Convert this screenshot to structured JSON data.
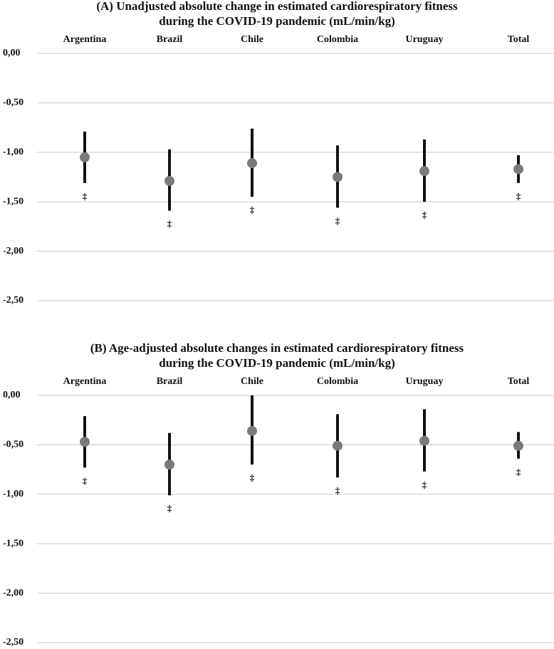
{
  "chart_data": [
    {
      "type": "errorbar",
      "title": [
        "(A) Unadjusted absolute change in estimated cardiorespiratory fitness",
        "during the COVID-19 pandemic (mL/min/kg)"
      ],
      "categories": [
        "Argentina",
        "Brazil",
        "Chile",
        "Colombia",
        "Uruguay",
        "Total"
      ],
      "values": [
        -1.05,
        -1.29,
        -1.11,
        -1.25,
        -1.19,
        -1.17
      ],
      "upper": [
        -0.79,
        -0.97,
        -0.76,
        -0.93,
        -0.87,
        -1.03
      ],
      "lower": [
        -1.31,
        -1.59,
        -1.45,
        -1.56,
        -1.5,
        -1.31
      ],
      "markers": [
        "‡",
        "‡",
        "‡",
        "‡",
        "‡",
        "‡"
      ],
      "ylim": [
        -2.5,
        0
      ],
      "yticks": [
        {
          "value": 0,
          "label": "0,00"
        },
        {
          "value": -0.5,
          "label": "-0,50"
        },
        {
          "value": -1,
          "label": "-1,00"
        },
        {
          "value": -1.5,
          "label": "-1,50"
        },
        {
          "value": -2,
          "label": "-2,00"
        },
        {
          "value": -2.5,
          "label": "-2,50"
        }
      ],
      "grid": true,
      "point_color": "#7a7a7a",
      "bar_color": "#111111"
    },
    {
      "type": "errorbar",
      "title": [
        "(B) Age-adjusted absolute changes in estimated cardiorespiratory fitness",
        "during the COVID-19 pandemic (mL/min/kg)"
      ],
      "categories": [
        "Argentina",
        "Brazil",
        "Chile",
        "Colombia",
        "Uruguay",
        "Total"
      ],
      "values": [
        -0.47,
        -0.7,
        -0.36,
        -0.51,
        -0.46,
        -0.51
      ],
      "upper": [
        -0.21,
        -0.38,
        0.0,
        -0.19,
        -0.14,
        -0.37
      ],
      "lower": [
        -0.73,
        -1.01,
        -0.7,
        -0.83,
        -0.77,
        -0.64
      ],
      "markers": [
        "‡",
        "‡",
        "‡",
        "‡",
        "‡",
        "‡"
      ],
      "ylim": [
        -2.5,
        0
      ],
      "yticks": [
        {
          "value": 0,
          "label": "0,00"
        },
        {
          "value": -0.5,
          "label": "-0,50"
        },
        {
          "value": -1,
          "label": "-1,00"
        },
        {
          "value": -1.5,
          "label": "-1,50"
        },
        {
          "value": -2,
          "label": "-2,00"
        },
        {
          "value": -2.5,
          "label": "-2,50"
        }
      ],
      "grid": true,
      "point_color": "#7a7a7a",
      "bar_color": "#111111"
    }
  ]
}
